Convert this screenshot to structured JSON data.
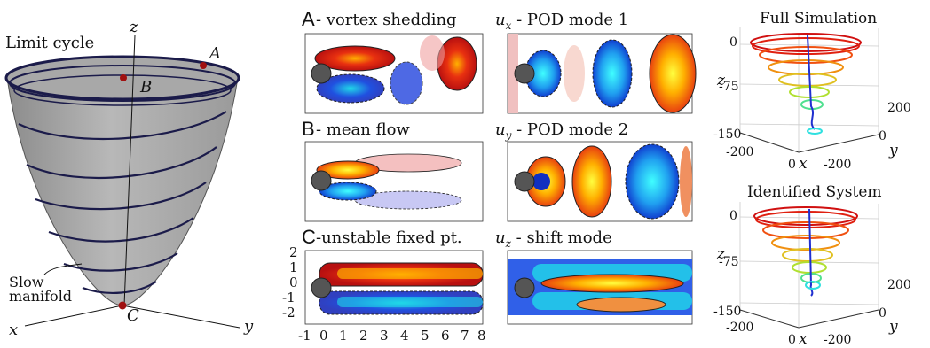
{
  "left": {
    "axes": {
      "z": "z",
      "x": "x",
      "y": "y"
    },
    "labels": {
      "limit_cycle": "Limit cycle",
      "point_a": "A",
      "point_b": "B",
      "point_c": "C",
      "slow_line1": "Slow",
      "slow_line2": "manifold"
    }
  },
  "middle": {
    "panels": [
      {
        "letter": "A",
        "title": "- vortex shedding"
      },
      {
        "letter": "B",
        "title": "- mean flow"
      },
      {
        "letter": "C",
        "title": "-unstable fixed pt."
      }
    ],
    "y_ticks": [
      "2",
      "1",
      "0",
      "-1",
      "-2"
    ],
    "x_ticks": [
      "-1",
      "0",
      "1",
      "2",
      "3",
      "4",
      "5",
      "6",
      "7",
      "8"
    ]
  },
  "modes": [
    {
      "var": "u",
      "sub": "x",
      "title": " - POD mode 1"
    },
    {
      "var": "u",
      "sub": "y",
      "title": " - POD mode 2"
    },
    {
      "var": "u",
      "sub": "z",
      "title": " - shift mode"
    }
  ],
  "right": {
    "top": {
      "title": "Full Simulation",
      "z_label": "z",
      "z_ticks": [
        "0",
        "-75",
        "-150"
      ],
      "x_ticks": [
        "-200",
        "0"
      ],
      "x_label": "x",
      "y_ticks": [
        "200",
        "0",
        "-200"
      ],
      "y_label": "y"
    },
    "bottom": {
      "title": "Identified System",
      "z_label": "z",
      "z_ticks": [
        "0",
        "-75",
        "-150"
      ],
      "x_ticks": [
        "-200",
        "0"
      ],
      "x_label": "x",
      "y_ticks": [
        "200",
        "0",
        "-200"
      ],
      "y_label": "y"
    }
  }
}
